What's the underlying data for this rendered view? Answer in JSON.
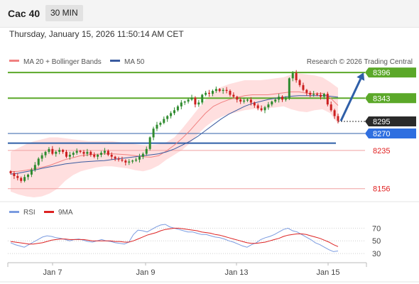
{
  "header": {
    "title": "Cac 40",
    "period": "30 MIN",
    "datetime": "Thursday, January 15, 2026 11:50:14 AM CET"
  },
  "legend": {
    "ma20": "MA 20 + Bollinger Bands",
    "ma50": "MA 50",
    "credit": "Research © 2026 Trading Central",
    "rsi": "RSI",
    "rsi_ma": "9MA"
  },
  "colors": {
    "candle_up": "#2e8b2e",
    "candle_down": "#cc1f1f",
    "ma20": "#f08080",
    "bollinger_fill": "#ffd9d9",
    "ma50": "#3a5ba0",
    "resistance": "#5ba829",
    "support": "#2f5fa8",
    "current": "#333333",
    "arrow": "#2f5fa8",
    "rsi_line": "#7a9be0",
    "rsi_ma_line": "#dd2222",
    "level_red": "#e02020"
  },
  "chart_data": {
    "type": "candlestick",
    "y_range": [
      8135,
      8405
    ],
    "x_ticks": [
      "Jan 7",
      "Jan 9",
      "Jan 13",
      "Jan 15"
    ],
    "levels": [
      {
        "name": "resistance-2",
        "value": 8396,
        "label": "8396",
        "style": "green-badge"
      },
      {
        "name": "resistance-1",
        "value": 8343,
        "label": "8343",
        "style": "green-badge"
      },
      {
        "name": "last-price",
        "value": 8295,
        "label": "8295",
        "style": "dark-badge"
      },
      {
        "name": "pivot",
        "value": 8270,
        "label": "8270",
        "style": "blue-badge"
      },
      {
        "name": "support-1",
        "value": 8235,
        "label": "8235",
        "style": "red-text"
      },
      {
        "name": "support-2",
        "value": 8156,
        "label": "8156",
        "style": "red-text"
      }
    ],
    "closes": [
      8188,
      8182,
      8178,
      8172,
      8180,
      8185,
      8195,
      8205,
      8218,
      8225,
      8232,
      8238,
      8228,
      8232,
      8236,
      8232,
      8222,
      8226,
      8230,
      8234,
      8232,
      8228,
      8232,
      8226,
      8222,
      8226,
      8230,
      8234,
      8226,
      8222,
      8218,
      8216,
      8214,
      8210,
      8212,
      8214,
      8216,
      8222,
      8228,
      8238,
      8262,
      8280,
      8288,
      8292,
      8300,
      8306,
      8312,
      8318,
      8326,
      8334,
      8336,
      8340,
      8344,
      8330,
      8334,
      8350,
      8354,
      8352,
      8358,
      8362,
      8358,
      8360,
      8358,
      8350,
      8346,
      8340,
      8336,
      8338,
      8340,
      8334,
      8328,
      8322,
      8318,
      8324,
      8330,
      8336,
      8340,
      8346,
      8340,
      8342,
      8384,
      8395,
      8380,
      8370,
      8360,
      8354,
      8350,
      8352,
      8350,
      8346,
      8352,
      8330,
      8318,
      8306,
      8296
    ],
    "bollinger_upper": [
      8232,
      8240,
      8248,
      8254,
      8258,
      8262,
      8262,
      8260,
      8258,
      8256,
      8254,
      8254,
      8254,
      8254,
      8252,
      8250,
      8248,
      8246,
      8246,
      8248,
      8252,
      8262,
      8280,
      8300,
      8320,
      8340,
      8356,
      8366,
      8372,
      8376,
      8380,
      8380,
      8380,
      8382,
      8384,
      8386,
      8392,
      8394,
      8392,
      8390,
      8386,
      8376,
      8364
    ],
    "bollinger_lower": [
      8150,
      8144,
      8140,
      8138,
      8140,
      8146,
      8156,
      8172,
      8184,
      8192,
      8196,
      8200,
      8202,
      8202,
      8200,
      8198,
      8194,
      8192,
      8196,
      8204,
      8216,
      8226,
      8236,
      8250,
      8268,
      8284,
      8296,
      8304,
      8310,
      8314,
      8318,
      8320,
      8322,
      8322,
      8324,
      8326,
      8320,
      8316,
      8314,
      8318,
      8320,
      8312,
      8290
    ],
    "ma20": [
      8191,
      8192,
      8194,
      8197,
      8200,
      8204,
      8210,
      8216,
      8220,
      8224,
      8226,
      8227,
      8228,
      8228,
      8227,
      8226,
      8224,
      8222,
      8221,
      8224,
      8234,
      8246,
      8260,
      8276,
      8294,
      8312,
      8326,
      8334,
      8340,
      8344,
      8348,
      8350,
      8350,
      8350,
      8352,
      8354,
      8356,
      8356,
      8353,
      8352,
      8353,
      8344,
      8328
    ],
    "ma50": [
      8186,
      8188,
      8191,
      8194,
      8198,
      8201,
      8204,
      8207,
      8209,
      8211,
      8212,
      8213,
      8214,
      8216,
      8218,
      8220,
      8222,
      8224,
      8226,
      8228,
      8232,
      8238,
      8246,
      8254,
      8264,
      8276,
      8288,
      8300,
      8310,
      8318,
      8326,
      8332,
      8336,
      8340,
      8343,
      8345,
      8347,
      8348,
      8348,
      8348,
      8348,
      8347,
      8345
    ],
    "rsi": {
      "y_ticks": [
        70,
        50,
        30
      ],
      "y_range": [
        20,
        85
      ],
      "values": [
        47,
        44,
        42,
        40,
        44,
        48,
        52,
        56,
        58,
        57,
        55,
        54,
        52,
        50,
        52,
        53,
        51,
        49,
        48,
        50,
        52,
        50,
        49,
        47,
        46,
        45,
        48,
        60,
        67,
        66,
        64,
        68,
        72,
        75,
        76,
        72,
        70,
        68,
        66,
        64,
        64,
        62,
        60,
        60,
        58,
        56,
        55,
        53,
        50,
        48,
        45,
        42,
        40,
        44,
        47,
        52,
        55,
        57,
        60,
        64,
        68,
        70,
        66,
        64,
        60,
        56,
        52,
        47,
        44,
        40,
        36,
        33,
        34
      ],
      "ma": [
        49,
        48,
        47,
        46,
        45,
        45,
        46,
        47,
        49,
        51,
        52,
        53,
        53,
        52,
        52,
        52,
        52,
        51,
        50,
        50,
        50,
        50,
        50,
        49,
        49,
        48,
        48,
        50,
        53,
        56,
        59,
        61,
        63,
        66,
        68,
        69,
        70,
        70,
        69,
        68,
        67,
        66,
        64,
        63,
        62,
        60,
        59,
        57,
        55,
        53,
        51,
        49,
        47,
        46,
        46,
        47,
        48,
        50,
        52,
        54,
        57,
        59,
        60,
        61,
        61,
        60,
        58,
        56,
        54,
        51,
        48,
        44,
        41
      ]
    }
  }
}
